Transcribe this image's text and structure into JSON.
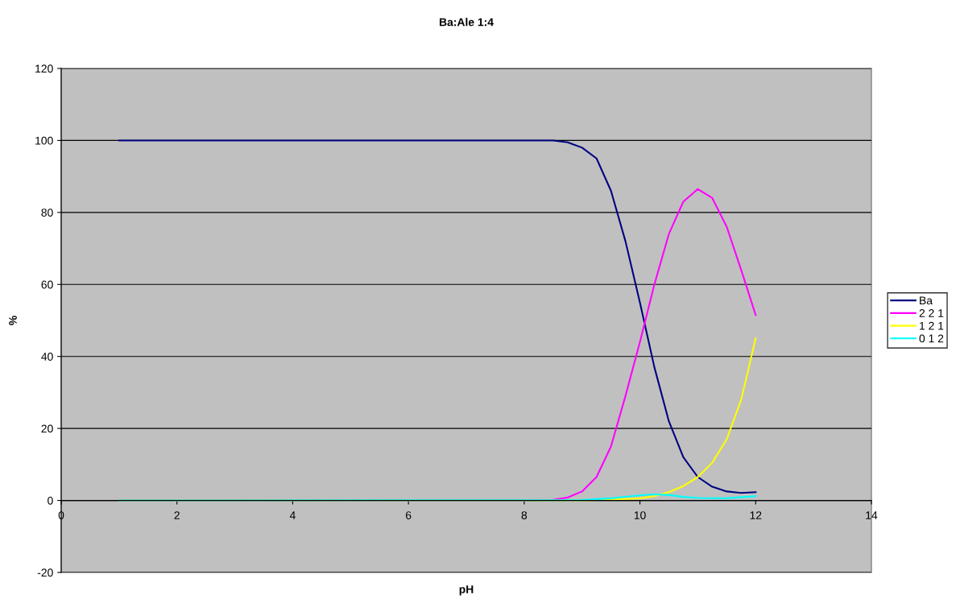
{
  "chart_data": {
    "type": "line",
    "title": "Ba:Ale 1:4",
    "xlabel": "pH",
    "ylabel": "%",
    "xlim": [
      0,
      14
    ],
    "xticks": [
      0,
      2,
      4,
      6,
      8,
      10,
      12,
      14
    ],
    "ylim": [
      -20,
      120
    ],
    "yticks": [
      -20,
      0,
      20,
      40,
      60,
      80,
      100,
      120
    ],
    "grid": "y",
    "legend": "right",
    "marker": "none",
    "line_style": "solid",
    "series": [
      {
        "name": "Ba",
        "color": "#000080",
        "x": [
          1,
          8,
          8.5,
          8.75,
          9,
          9.25,
          9.5,
          9.75,
          10,
          10.25,
          10.5,
          10.75,
          11,
          11.25,
          11.5,
          11.75,
          12
        ],
        "values": [
          100,
          100,
          100,
          99.5,
          98,
          95,
          86,
          72,
          55,
          37,
          22,
          12,
          6.5,
          3.8,
          2.5,
          2.1,
          2.3
        ]
      },
      {
        "name": "2 2 1",
        "color": "#ff00ff",
        "x": [
          1,
          8,
          8.5,
          8.75,
          9,
          9.25,
          9.5,
          9.75,
          10,
          10.25,
          10.5,
          10.75,
          11,
          11.25,
          11.5,
          11.75,
          12
        ],
        "values": [
          0,
          0,
          0.2,
          0.8,
          2.5,
          6.5,
          15,
          29,
          44,
          60,
          74,
          83,
          86.5,
          84,
          76,
          64,
          51.5
        ]
      },
      {
        "name": "1 2 1",
        "color": "#ffff00",
        "x": [
          1,
          9,
          9.5,
          10,
          10.25,
          10.5,
          10.75,
          11,
          11.25,
          11.5,
          11.75,
          12
        ],
        "values": [
          0,
          0,
          0.2,
          0.6,
          1.2,
          2.3,
          4,
          6.5,
          10.5,
          17,
          28,
          45
        ]
      },
      {
        "name": "0 1 2",
        "color": "#00ffff",
        "x": [
          1,
          9,
          9.5,
          10,
          10.25,
          10.5,
          10.75,
          11,
          11.5,
          12
        ],
        "values": [
          0,
          0.1,
          0.6,
          1.4,
          1.7,
          1.5,
          1.0,
          0.7,
          0.6,
          1.2
        ]
      }
    ]
  }
}
